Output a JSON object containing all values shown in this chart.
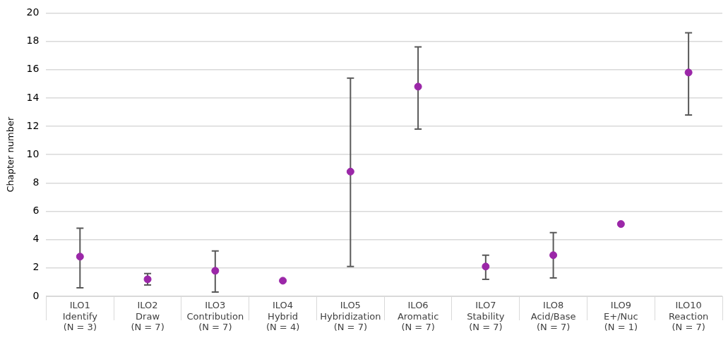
{
  "chart_data": {
    "type": "scatter",
    "ylabel": "Chapter number",
    "categories": [
      "ILO1\nIdentify\n(N = 3)",
      "ILO2\nDraw\n(N = 7)",
      "ILO3\nContribution\n(N = 7)",
      "ILO4\nHybrid\n(N = 4)",
      "ILO5\nHybridization\n(N = 7)",
      "ILO6\nAromatic\n(N = 7)",
      "ILO7\nStability\n(N = 7)",
      "ILO8\nAcid/Base\n(N = 7)",
      "ILO9\nE+/Nuc\n(N = 1)",
      "ILO10\nReaction\n(N = 7)"
    ],
    "values": [
      2.8,
      1.2,
      1.8,
      1.1,
      8.8,
      14.8,
      2.1,
      2.9,
      5.1,
      15.8
    ],
    "errors": [
      [
        0.6,
        4.8
      ],
      [
        0.8,
        1.6
      ],
      [
        0.3,
        3.2
      ],
      null,
      [
        2.1,
        15.4
      ],
      [
        11.8,
        17.6
      ],
      [
        1.2,
        2.9
      ],
      [
        1.3,
        4.5
      ],
      null,
      [
        12.8,
        18.6
      ]
    ],
    "color": "#9b27a8",
    "marker": "circle",
    "ylim": [
      0,
      20
    ],
    "yticks": [
      0,
      2,
      4,
      6,
      8,
      10,
      12,
      14,
      16,
      18,
      20
    ],
    "grid": "y",
    "legend": false
  }
}
